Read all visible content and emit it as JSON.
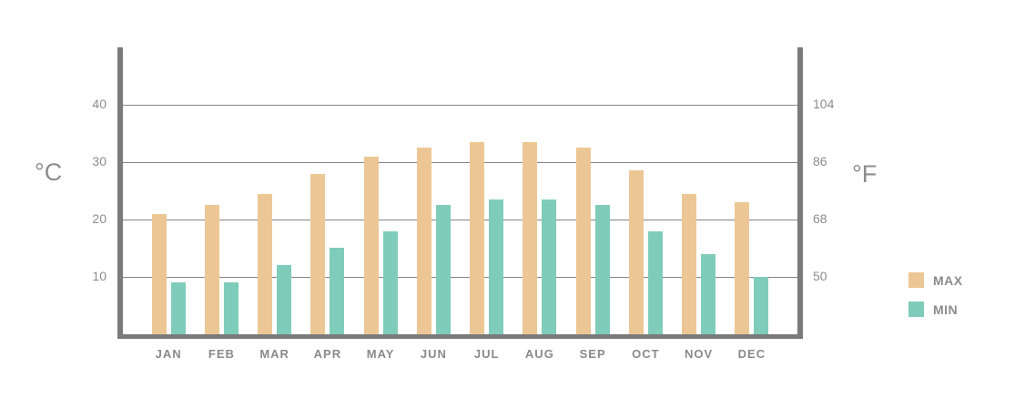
{
  "chart_data": {
    "type": "bar",
    "categories": [
      "JAN",
      "FEB",
      "MAR",
      "APR",
      "MAY",
      "JUN",
      "JUL",
      "AUG",
      "SEP",
      "OCT",
      "NOV",
      "DEC"
    ],
    "series": [
      {
        "name": "MAX",
        "color": "#ecc795",
        "values": [
          21,
          22.5,
          24.5,
          28,
          31,
          32.5,
          33.5,
          33.5,
          32.5,
          28.5,
          24.5,
          23
        ]
      },
      {
        "name": "MIN",
        "color": "#7fccba",
        "values": [
          9,
          9,
          12,
          15,
          18,
          22.5,
          23.5,
          23.5,
          22.5,
          18,
          14,
          10
        ]
      }
    ],
    "left_axis": {
      "label": "°C",
      "ticks": [
        10,
        20,
        30,
        40
      ]
    },
    "right_axis": {
      "label": "°F",
      "ticks": [
        50,
        68,
        86,
        104
      ]
    },
    "ylim": [
      0,
      50
    ],
    "grid": true,
    "legend_position": "right"
  },
  "colors": {
    "axis": "#7b7b7b",
    "gridline": "#858585",
    "tick_text": "#8c8c8c",
    "category_text": "#8a8a8a",
    "max_bar": "#ecc795",
    "min_bar": "#7fccba",
    "background": "#ffffff"
  }
}
